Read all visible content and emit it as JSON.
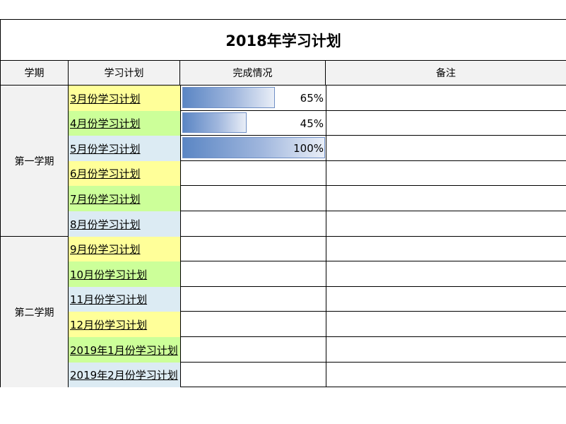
{
  "title": "2018年学习计划",
  "headers": [
    "学期",
    "学习计划",
    "完成情况",
    "备注"
  ],
  "semesters": [
    "第一学期",
    "第二学期"
  ],
  "colors": {
    "yellow": "#ffff99",
    "green": "#ccff99",
    "blue": "#dcebf3",
    "header_bg": "#f2f2f2",
    "bar": "#5b86c4"
  },
  "rows": [
    {
      "plan": "3月份学习计划",
      "color": "yellow",
      "progress": 0.65,
      "progress_label": "65%"
    },
    {
      "plan": "4月份学习计划",
      "color": "green",
      "progress": 0.45,
      "progress_label": "45%"
    },
    {
      "plan": "5月份学习计划",
      "color": "blue",
      "progress": 1.0,
      "progress_label": "100%"
    },
    {
      "plan": "6月份学习计划",
      "color": "yellow"
    },
    {
      "plan": "7月份学习计划",
      "color": "green"
    },
    {
      "plan": "8月份学习计划",
      "color": "blue"
    },
    {
      "plan": "9月份学习计划",
      "color": "yellow"
    },
    {
      "plan": "10月份学习计划",
      "color": "green"
    },
    {
      "plan": "11月份学习计划",
      "color": "blue"
    },
    {
      "plan": "12月份学习计划",
      "color": "yellow"
    },
    {
      "plan": "2019年1月份学习计划",
      "color": "green"
    },
    {
      "plan": "2019年2月份学习计划",
      "color": "blue"
    }
  ]
}
